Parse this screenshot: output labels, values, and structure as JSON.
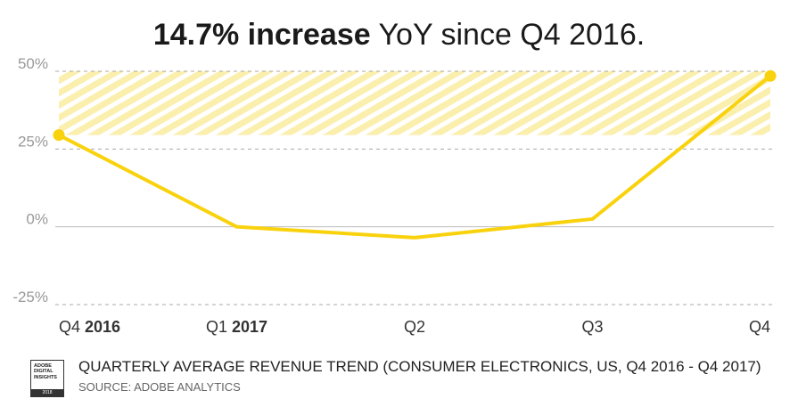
{
  "title": {
    "bold": "14.7% increase",
    "light": "YoY since Q4 2016."
  },
  "chart_data": {
    "type": "line",
    "x_tick_labels": [
      {
        "light": "Q4",
        "bold": "2016"
      },
      {
        "light": "Q1",
        "bold": "2017"
      },
      {
        "light": "Q2",
        "bold": ""
      },
      {
        "light": "Q3",
        "bold": ""
      },
      {
        "light": "Q4",
        "bold": ""
      }
    ],
    "y_ticks": [
      "50%",
      "25%",
      "0%",
      "-25%"
    ],
    "y_tick_values": [
      50,
      25,
      0,
      -25
    ],
    "ylim": [
      -25,
      50
    ],
    "series": [
      {
        "values": [
          29.5,
          0,
          -3.5,
          2.5,
          48.5
        ]
      }
    ],
    "highlight_band": [
      29.5,
      50
    ],
    "grid": "horizontal-dashed",
    "colors": {
      "line": "#F9D20E",
      "band": "#FBEFAE",
      "grid": "#AAAAAA",
      "zero_line": "#BBBBBB"
    }
  },
  "footer": {
    "badge_lines": [
      "ADOBE",
      "DIGITAL",
      "INSIGHTS"
    ],
    "badge_year": "2018",
    "subtitle": "QUARTERLY AVERAGE REVENUE TREND (CONSUMER ELECTRONICS, US, Q4 2016 - Q4 2017)",
    "source": "SOURCE: ADOBE ANALYTICS"
  }
}
